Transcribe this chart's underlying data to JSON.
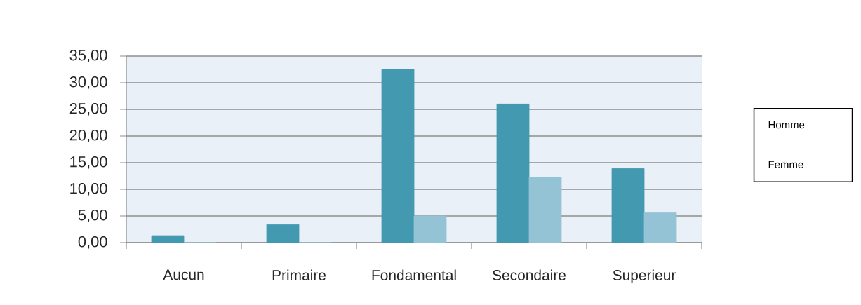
{
  "chart_data": {
    "type": "bar",
    "categories": [
      "Aucun",
      "Primaire",
      "Fondamental",
      "Secondaire",
      "Superieur"
    ],
    "series": [
      {
        "name": "Homme",
        "color": "#4399b0",
        "values": [
          1.3,
          3.4,
          32.5,
          26.0,
          13.9
        ]
      },
      {
        "name": "Femme",
        "color": "#94c3d6",
        "values": [
          0,
          0,
          5.0,
          12.3,
          5.6
        ]
      }
    ],
    "ylim": [
      0,
      35
    ],
    "yticks": [
      {
        "value": 0,
        "label": "0,00"
      },
      {
        "value": 5,
        "label": "5,00"
      },
      {
        "value": 10,
        "label": "10,00"
      },
      {
        "value": 15,
        "label": "15,00"
      },
      {
        "value": 20,
        "label": "20,00"
      },
      {
        "value": 25,
        "label": "25,00"
      },
      {
        "value": 30,
        "label": "30,00"
      },
      {
        "value": 35,
        "label": "35,00"
      }
    ],
    "grid": "y",
    "legend": "right"
  }
}
